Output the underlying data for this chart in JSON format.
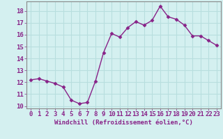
{
  "x": [
    0,
    1,
    2,
    3,
    4,
    5,
    6,
    7,
    8,
    9,
    10,
    11,
    12,
    13,
    14,
    15,
    16,
    17,
    18,
    19,
    20,
    21,
    22,
    23
  ],
  "y": [
    12.2,
    12.3,
    12.1,
    11.9,
    11.6,
    10.5,
    10.2,
    10.3,
    12.1,
    14.5,
    16.1,
    15.8,
    16.6,
    17.1,
    16.8,
    17.2,
    18.4,
    17.5,
    17.3,
    16.8,
    15.9,
    15.9,
    15.5,
    15.1
  ],
  "line_color": "#882288",
  "marker": "D",
  "marker_size": 2.5,
  "linewidth": 1.0,
  "xlabel": "Windchill (Refroidissement éolien,°C)",
  "xlabel_fontsize": 6.5,
  "background_color": "#d4f0f0",
  "grid_color": "#b8dede",
  "tick_label_fontsize": 6.5,
  "ylim": [
    9.8,
    18.8
  ],
  "yticks": [
    10,
    11,
    12,
    13,
    14,
    15,
    16,
    17,
    18
  ],
  "xticks": [
    0,
    1,
    2,
    3,
    4,
    5,
    6,
    7,
    8,
    9,
    10,
    11,
    12,
    13,
    14,
    15,
    16,
    17,
    18,
    19,
    20,
    21,
    22,
    23
  ],
  "xtick_labels": [
    "0",
    "1",
    "2",
    "3",
    "4",
    "5",
    "6",
    "7",
    "8",
    "9",
    "10",
    "11",
    "12",
    "13",
    "14",
    "15",
    "16",
    "17",
    "18",
    "19",
    "20",
    "21",
    "22",
    "23"
  ],
  "spine_color": "#888888"
}
